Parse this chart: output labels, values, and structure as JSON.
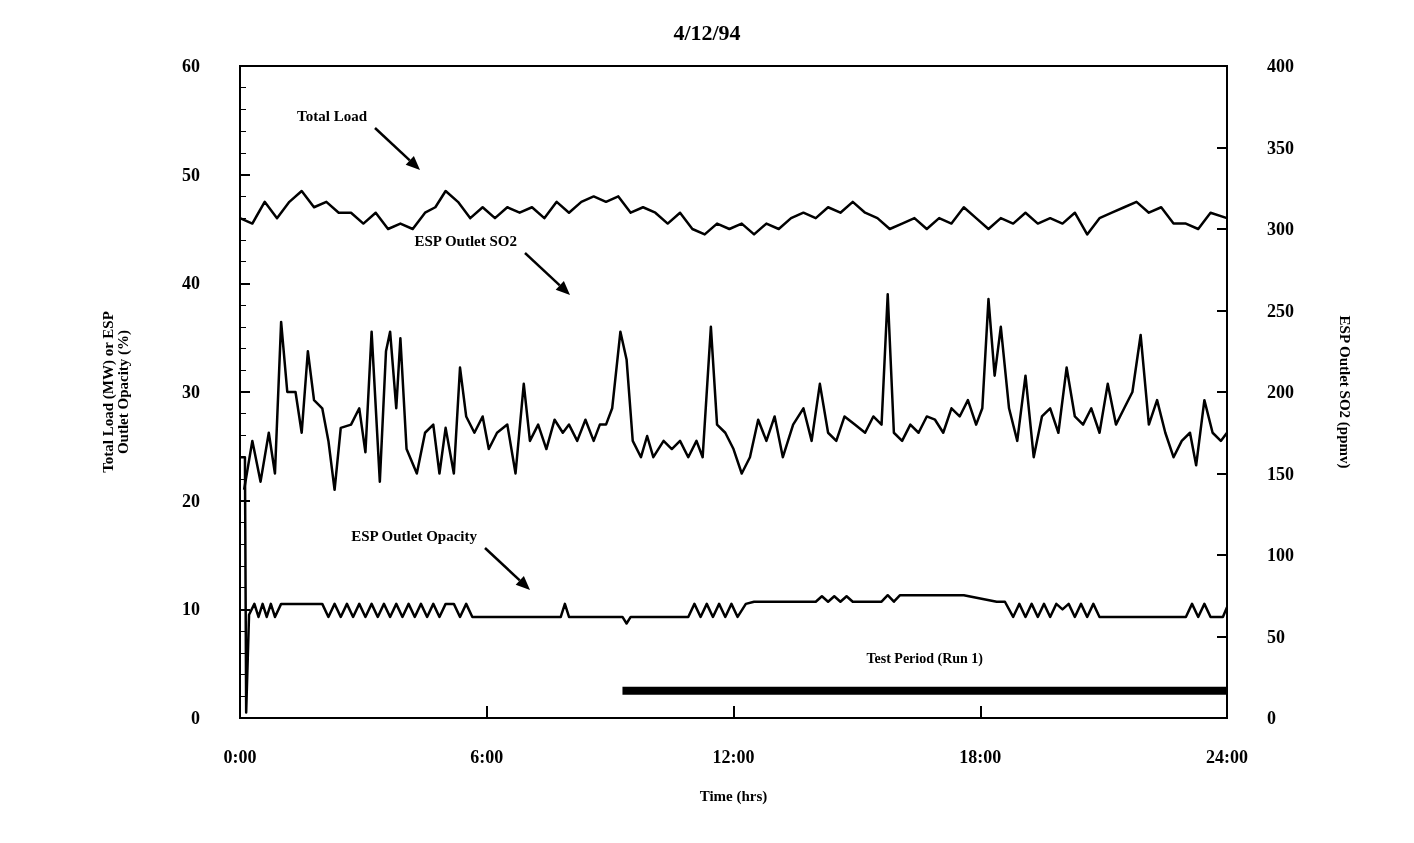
{
  "chart_data": {
    "type": "line",
    "title": "4/12/94",
    "xlabel": "Time (hrs)",
    "ylabel": "Total Load (MW) or ESP\nOutlet Opacity (%)",
    "y2label": "ESP Outlet SO2 (ppmv)",
    "xlim": [
      0,
      24
    ],
    "xticks": [
      {
        "value": 0,
        "label": "0:00"
      },
      {
        "value": 6,
        "label": "6:00"
      },
      {
        "value": 12,
        "label": "12:00"
      },
      {
        "value": 18,
        "label": "18:00"
      },
      {
        "value": 24,
        "label": "24:00"
      }
    ],
    "ylim": [
      0,
      60
    ],
    "yticks": [
      0,
      10,
      20,
      30,
      40,
      50,
      60
    ],
    "y2lim": [
      0,
      400
    ],
    "y2ticks": [
      0,
      50,
      100,
      150,
      200,
      250,
      300,
      350,
      400
    ],
    "grid": false,
    "legend": false,
    "marker": "none",
    "line_style": "solid",
    "annotations": [
      "Total Load",
      "ESP Outlet SO2",
      "ESP Outlet Opacity"
    ],
    "series": [
      {
        "name": "Test Period (Run 1)",
        "color": "#000000",
        "x": [
          9.3,
          24
        ],
        "values": [
          2.5,
          2.5
        ]
      },
      {
        "color": "#000000",
        "x": [
          0,
          0.3,
          0.6,
          0.9,
          1.2,
          1.5,
          1.8,
          2.1,
          2.4,
          2.7,
          3.0,
          3.3,
          3.6,
          3.9,
          4.2,
          4.5,
          4.75,
          5.0,
          5.3,
          5.6,
          5.9,
          6.2,
          6.5,
          6.8,
          7.1,
          7.4,
          7.7,
          8.0,
          8.3,
          8.6,
          8.9,
          9.2,
          9.5,
          9.8,
          10.1,
          10.4,
          10.7,
          11.0,
          11.3,
          11.6,
          11.9,
          12.2,
          12.5,
          12.8,
          13.1,
          13.4,
          13.7,
          14.0,
          14.3,
          14.6,
          14.9,
          15.2,
          15.5,
          15.8,
          16.1,
          16.4,
          16.7,
          17.0,
          17.3,
          17.6,
          17.9,
          18.2,
          18.5,
          18.8,
          19.1,
          19.4,
          19.7,
          20.0,
          20.3,
          20.6,
          20.9,
          21.2,
          21.5,
          21.8,
          22.1,
          22.4,
          22.7,
          23.0,
          23.3,
          23.6,
          24.0
        ],
        "values": [
          46,
          45.5,
          47.5,
          46,
          47.5,
          48.5,
          47,
          47.5,
          46.5,
          46.5,
          45.5,
          46.5,
          45,
          45.5,
          45,
          46.5,
          47,
          48.5,
          47.5,
          46,
          47,
          46,
          47,
          46.5,
          47,
          46,
          47.5,
          46.5,
          47.5,
          48,
          47.5,
          48,
          46.5,
          47,
          46.5,
          45.5,
          46.5,
          45,
          44.5,
          45.5,
          45,
          45.5,
          44.5,
          45.5,
          45,
          46,
          46.5,
          46,
          47,
          46.5,
          47.5,
          46.5,
          46,
          45,
          45.5,
          46,
          45,
          46,
          45.5,
          47,
          46,
          45,
          46,
          45.5,
          46.5,
          45.5,
          46,
          45.5,
          46.5,
          44.5,
          46,
          46.5,
          47,
          47.5,
          46.5,
          47,
          45.5,
          45.5,
          45,
          46.5,
          46
        ]
      },
      {
        "color": "#000000",
        "axis": "y2",
        "x": [
          0.1,
          0.3,
          0.5,
          0.7,
          0.85,
          1.0,
          1.15,
          1.35,
          1.5,
          1.65,
          1.8,
          2.0,
          2.15,
          2.3,
          2.45,
          2.7,
          2.9,
          3.05,
          3.2,
          3.4,
          3.55,
          3.65,
          3.8,
          3.9,
          4.05,
          4.3,
          4.5,
          4.7,
          4.85,
          5.0,
          5.2,
          5.35,
          5.5,
          5.7,
          5.9,
          6.05,
          6.25,
          6.5,
          6.7,
          6.9,
          7.05,
          7.25,
          7.45,
          7.65,
          7.85,
          8.0,
          8.2,
          8.4,
          8.6,
          8.75,
          8.9,
          9.05,
          9.25,
          9.4,
          9.55,
          9.75,
          9.9,
          10.05,
          10.3,
          10.5,
          10.7,
          10.9,
          11.1,
          11.25,
          11.45,
          11.6,
          11.8,
          12.0,
          12.2,
          12.4,
          12.6,
          12.8,
          13.0,
          13.2,
          13.45,
          13.7,
          13.9,
          14.1,
          14.3,
          14.5,
          14.7,
          14.95,
          15.2,
          15.4,
          15.6,
          15.75,
          15.9,
          16.1,
          16.3,
          16.5,
          16.7,
          16.9,
          17.1,
          17.3,
          17.5,
          17.7,
          17.9,
          18.05,
          18.2,
          18.35,
          18.5,
          18.7,
          18.9,
          19.1,
          19.3,
          19.5,
          19.7,
          19.9,
          20.1,
          20.3,
          20.5,
          20.7,
          20.9,
          21.1,
          21.3,
          21.5,
          21.7,
          21.9,
          22.1,
          22.3,
          22.5,
          22.7,
          22.9,
          23.1,
          23.25,
          23.45,
          23.65,
          23.85,
          24.0
        ],
        "values": [
          140,
          170,
          145,
          175,
          150,
          243,
          200,
          200,
          175,
          225,
          195,
          190,
          170,
          140,
          178,
          180,
          190,
          163,
          237,
          145,
          225,
          237,
          190,
          233,
          165,
          150,
          175,
          180,
          150,
          178,
          150,
          215,
          185,
          175,
          185,
          165,
          175,
          180,
          150,
          205,
          170,
          180,
          165,
          183,
          175,
          180,
          170,
          183,
          170,
          180,
          180,
          190,
          237,
          220,
          170,
          160,
          173,
          160,
          170,
          165,
          170,
          160,
          170,
          160,
          240,
          180,
          175,
          165,
          150,
          160,
          183,
          170,
          185,
          160,
          180,
          190,
          170,
          205,
          175,
          170,
          185,
          180,
          175,
          185,
          180,
          260,
          175,
          170,
          180,
          175,
          185,
          183,
          175,
          190,
          185,
          195,
          180,
          190,
          257,
          210,
          240,
          190,
          170,
          210,
          160,
          185,
          190,
          175,
          215,
          185,
          180,
          190,
          175,
          205,
          180,
          190,
          200,
          235,
          180,
          195,
          175,
          160,
          170,
          175,
          155,
          195,
          175,
          170,
          175
        ]
      },
      {
        "color": "#000000",
        "x": [
          0,
          0.12,
          0.15,
          0.22,
          0.35,
          0.45,
          0.55,
          0.65,
          0.75,
          0.85,
          1.0,
          2.0,
          2.15,
          2.3,
          2.45,
          2.6,
          2.75,
          2.9,
          3.05,
          3.2,
          3.35,
          3.5,
          3.65,
          3.8,
          3.95,
          4.1,
          4.25,
          4.4,
          4.55,
          4.7,
          4.85,
          5.0,
          5.2,
          5.35,
          5.5,
          5.65,
          7.8,
          7.9,
          8.0,
          9.3,
          9.4,
          9.5,
          10.9,
          11.05,
          11.2,
          11.35,
          11.5,
          11.65,
          11.8,
          11.95,
          12.1,
          12.3,
          12.5,
          14.0,
          14.15,
          14.3,
          14.45,
          14.6,
          14.75,
          14.9,
          15.05,
          15.6,
          15.75,
          15.9,
          16.05,
          16.2,
          17.6,
          18.4,
          18.6,
          18.8,
          18.95,
          19.1,
          19.25,
          19.4,
          19.55,
          19.7,
          19.85,
          20.0,
          20.15,
          20.3,
          20.45,
          20.6,
          20.75,
          20.9,
          23.0,
          23.15,
          23.3,
          23.45,
          23.6,
          23.9,
          24.0
        ],
        "values": [
          24,
          24,
          0.5,
          9.5,
          10.5,
          9.3,
          10.5,
          9.3,
          10.5,
          9.3,
          10.5,
          10.5,
          9.3,
          10.5,
          9.3,
          10.5,
          9.3,
          10.5,
          9.3,
          10.5,
          9.3,
          10.5,
          9.3,
          10.5,
          9.3,
          10.5,
          9.3,
          10.5,
          9.3,
          10.5,
          9.3,
          10.5,
          10.5,
          9.3,
          10.5,
          9.3,
          9.3,
          10.5,
          9.3,
          9.3,
          8.7,
          9.3,
          9.3,
          10.5,
          9.3,
          10.5,
          9.3,
          10.5,
          9.3,
          10.5,
          9.3,
          10.5,
          10.7,
          10.7,
          11.2,
          10.7,
          11.2,
          10.7,
          11.2,
          10.7,
          10.7,
          10.7,
          11.3,
          10.7,
          11.3,
          11.3,
          11.3,
          10.7,
          10.7,
          9.3,
          10.5,
          9.3,
          10.5,
          9.3,
          10.5,
          9.3,
          10.5,
          10.0,
          10.5,
          9.3,
          10.5,
          9.3,
          10.5,
          9.3,
          9.3,
          10.5,
          9.3,
          10.5,
          9.3,
          9.3,
          10.2
        ]
      }
    ]
  }
}
